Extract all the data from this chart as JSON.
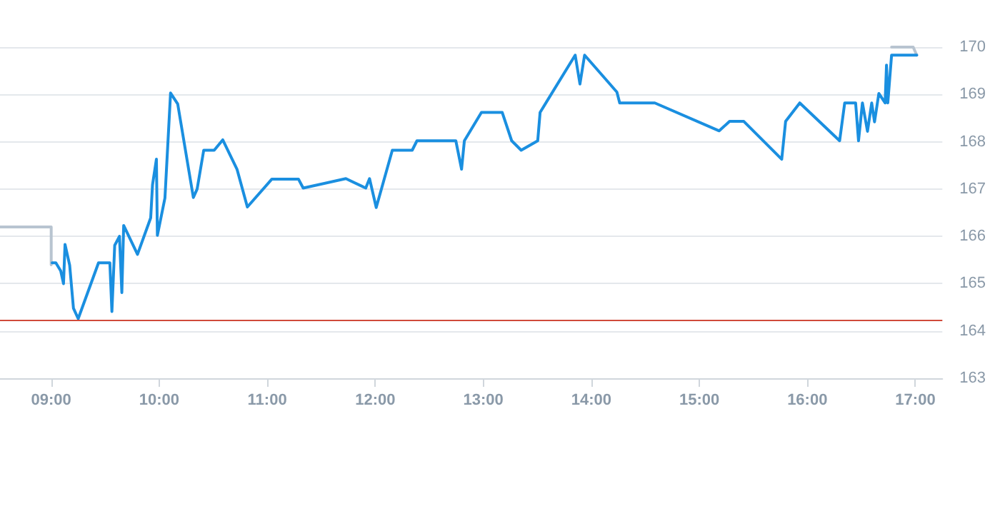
{
  "chart_data": {
    "type": "line",
    "xlim": [
      8.526,
      17.25
    ],
    "xticks": [
      {
        "value": 9,
        "label": "09:00"
      },
      {
        "value": 10,
        "label": "10:00"
      },
      {
        "value": 11,
        "label": "11:00"
      },
      {
        "value": 12,
        "label": "12:00"
      },
      {
        "value": 13,
        "label": "13:00"
      },
      {
        "value": 14,
        "label": "14:00"
      },
      {
        "value": 15,
        "label": "15:00"
      },
      {
        "value": 16,
        "label": "16:00"
      },
      {
        "value": 17,
        "label": "17:00"
      }
    ],
    "ylim": [
      163,
      170
    ],
    "yticks": [
      163,
      164,
      165,
      166,
      167,
      168,
      169,
      170
    ],
    "grid": "y",
    "marker": "none",
    "line_style": "solid",
    "series": [
      {
        "color": "#b8c4d0",
        "x": [
          8.526,
          9.0,
          9.0
        ],
        "values": [
          166.2,
          166.2,
          165.4
        ]
      },
      {
        "color": "#b8c4d0",
        "x": [
          16.78,
          16.98,
          17.013
        ],
        "values": [
          170.0,
          170.0,
          169.83
        ]
      },
      {
        "color": "#1a8fe0",
        "x": [
          9.009,
          9.043,
          9.088,
          9.114,
          9.128,
          9.171,
          9.206,
          9.25,
          9.438,
          9.543,
          9.562,
          9.588,
          9.632,
          9.654,
          9.671,
          9.799,
          9.921,
          9.938,
          9.974,
          9.983,
          10.053,
          10.105,
          10.171,
          10.316,
          10.351,
          10.412,
          10.509,
          10.588,
          10.72,
          10.816,
          11.043,
          11.289,
          11.333,
          11.728,
          11.912,
          11.947,
          12.009,
          12.158,
          12.342,
          12.386,
          12.746,
          12.799,
          12.825,
          12.983,
          13.175,
          13.263,
          13.351,
          13.504,
          13.526,
          13.851,
          13.895,
          13.938,
          14.237,
          14.263,
          14.588,
          15.184,
          15.28,
          15.412,
          15.763,
          15.799,
          15.93,
          16.299,
          16.346,
          16.447,
          16.474,
          16.51,
          16.557,
          16.596,
          16.622,
          16.662,
          16.72,
          16.733,
          16.745,
          16.78,
          17.013
        ],
        "values": [
          165.44,
          165.44,
          165.27,
          165.0,
          165.83,
          165.39,
          164.48,
          164.26,
          165.44,
          165.44,
          164.41,
          165.81,
          166.0,
          164.81,
          166.23,
          165.62,
          166.39,
          167.09,
          167.63,
          166.02,
          166.81,
          169.03,
          168.8,
          166.82,
          167.0,
          167.82,
          167.82,
          168.04,
          167.42,
          166.62,
          167.21,
          167.21,
          167.02,
          167.22,
          167.02,
          167.22,
          166.61,
          167.82,
          167.82,
          168.02,
          168.02,
          167.42,
          168.02,
          168.62,
          168.62,
          168.02,
          167.82,
          168.02,
          168.62,
          169.83,
          169.22,
          169.83,
          169.05,
          168.82,
          168.82,
          168.23,
          168.43,
          168.43,
          167.63,
          168.43,
          168.82,
          168.02,
          168.82,
          168.82,
          168.02,
          168.82,
          168.22,
          168.82,
          168.42,
          169.02,
          168.82,
          169.62,
          168.82,
          169.83,
          169.83
        ]
      }
    ],
    "ref_lines": [
      {
        "axis": "y",
        "value": 164.23,
        "color": "#d04a3a"
      }
    ]
  }
}
